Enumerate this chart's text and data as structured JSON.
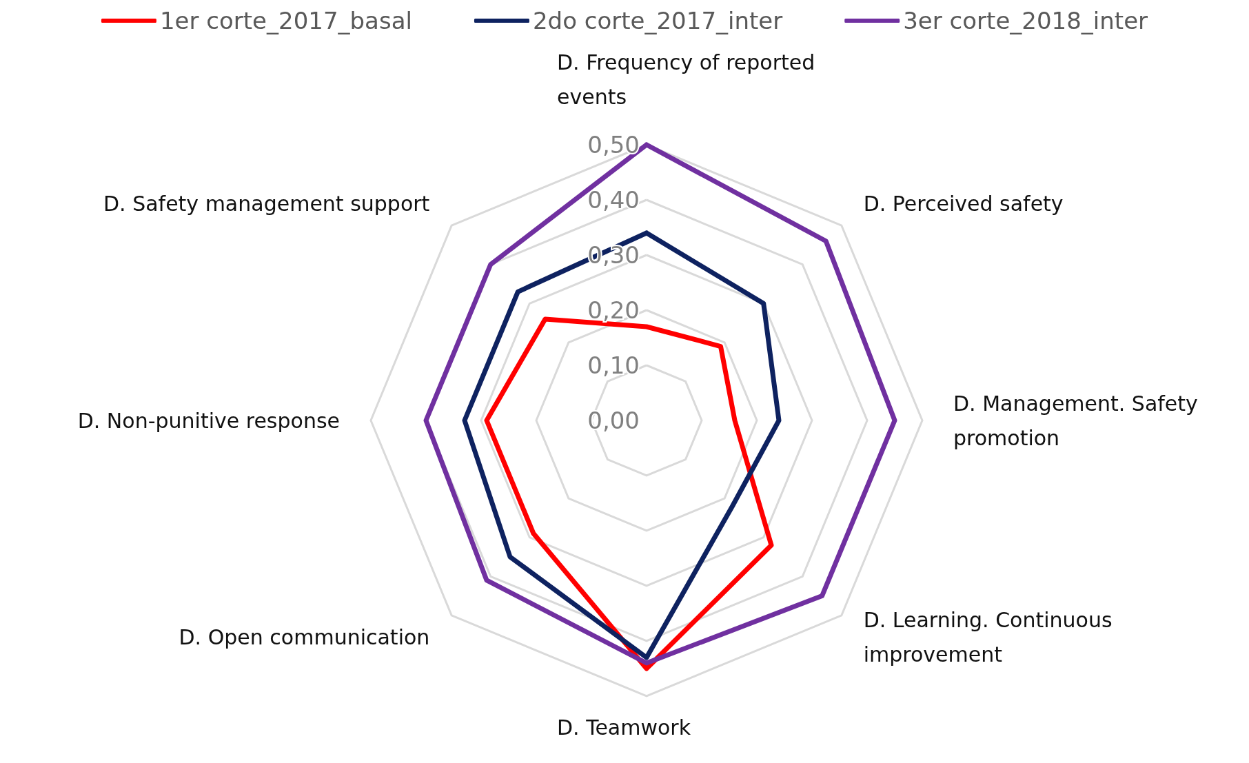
{
  "chart_data": {
    "type": "radar",
    "categories": [
      "D. Frequency of reported events",
      "D. Perceived safety",
      "D. Management. Safety promotion",
      "D. Learning. Continuous improvement",
      "D. Teamwork",
      "D. Open communication",
      "D. Non-punitive response",
      "D. Safety management support"
    ],
    "series": [
      {
        "name": "1er corte_2017_basal",
        "color": "#ff0000",
        "values": [
          0.17,
          0.19,
          0.16,
          0.32,
          0.45,
          0.29,
          0.29,
          0.26
        ]
      },
      {
        "name": "2do corte_2017_inter",
        "color": "#0e2260",
        "values": [
          0.34,
          0.3,
          0.24,
          0.22,
          0.43,
          0.35,
          0.33,
          0.33
        ]
      },
      {
        "name": "3er corte_2018_inter",
        "color": "#7030a0",
        "values": [
          0.5,
          0.46,
          0.45,
          0.45,
          0.44,
          0.41,
          0.4,
          0.4
        ]
      }
    ],
    "ylim": [
      0,
      0.5
    ],
    "yticks": [
      {
        "value": 0,
        "label": "0,00"
      },
      {
        "value": 0.1,
        "label": "0,10"
      },
      {
        "value": 0.2,
        "label": "0,20"
      },
      {
        "value": 0.3,
        "label": "0,30"
      },
      {
        "value": 0.4,
        "label": "0,40"
      },
      {
        "value": 0.5,
        "label": "0,50"
      }
    ],
    "legend": "top",
    "marker": "none",
    "line_style": "solid"
  }
}
